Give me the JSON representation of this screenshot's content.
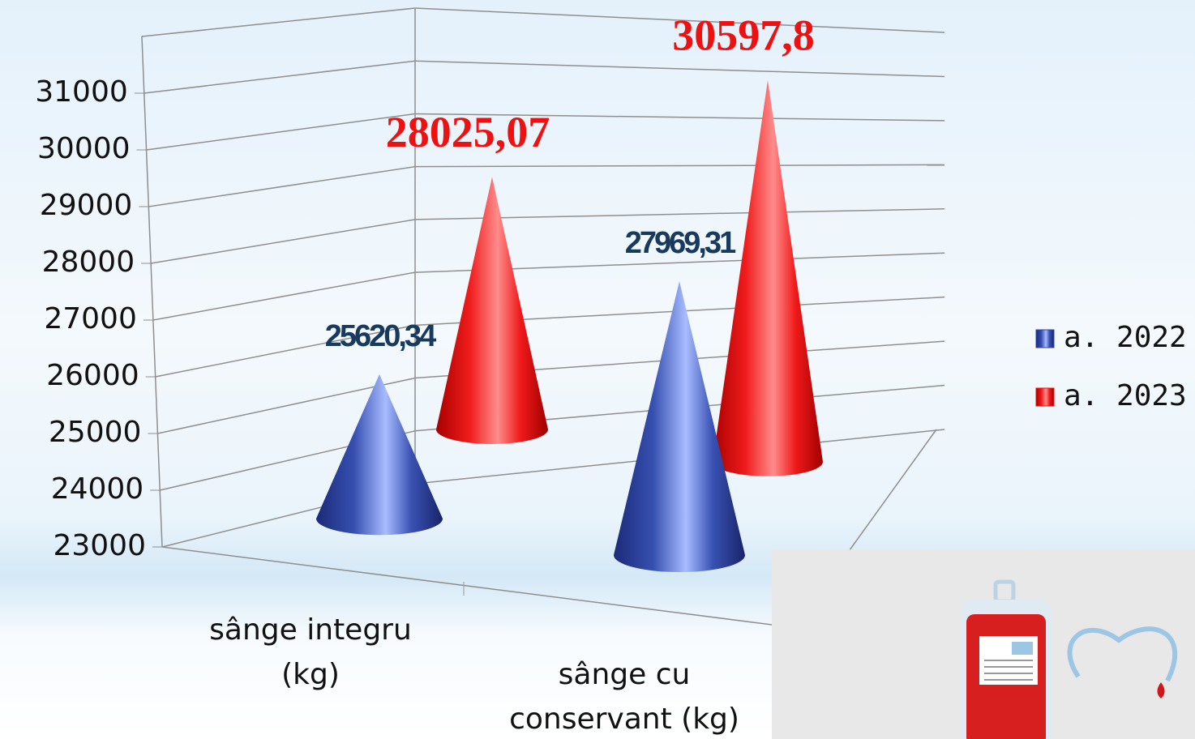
{
  "chart_data": {
    "type": "cone3d",
    "categories": [
      "sânge integru (kg)",
      "sânge cu conservant (kg)"
    ],
    "series": [
      {
        "name": "a. 2022",
        "color": "#2f47a8",
        "values": [
          25620.34,
          27969.31
        ],
        "value_labels": [
          "25620,34",
          "27969,31"
        ]
      },
      {
        "name": "a. 2023",
        "color": "#ee1111",
        "values": [
          28025.07,
          30597.8
        ],
        "value_labels": [
          "28025,07",
          "30597,8"
        ]
      }
    ],
    "ylim": [
      23000,
      32000
    ],
    "yticks": [
      23000,
      24000,
      25000,
      26000,
      27000,
      28000,
      29000,
      30000,
      31000
    ],
    "grid": true,
    "legend": "right"
  }
}
